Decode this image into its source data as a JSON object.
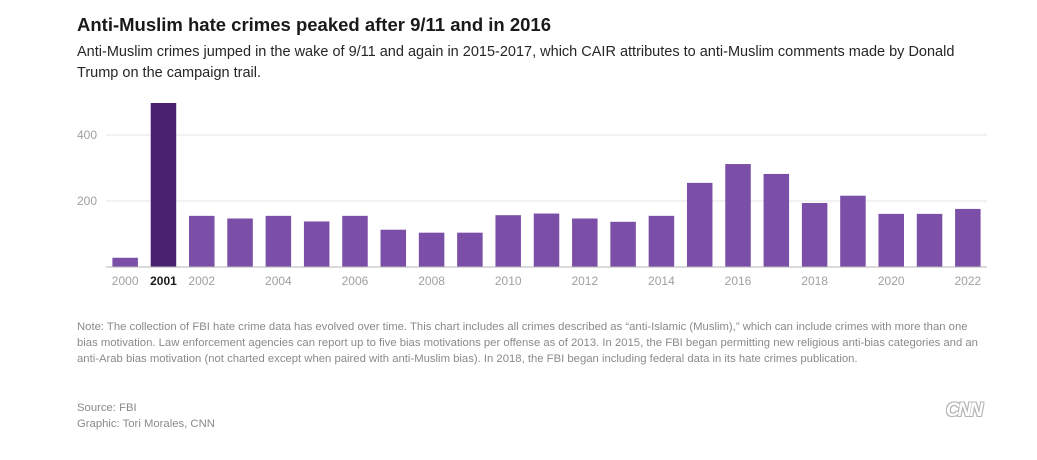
{
  "header": {
    "title": "Anti-Muslim hate crimes peaked after 9/11 and in 2016",
    "subtitle": "Anti-Muslim crimes jumped in the wake of 9/11 and again in 2015-2017, which CAIR attributes to anti-Muslim comments made by Donald Trump on the campaign trail."
  },
  "chart_data": {
    "type": "bar",
    "title": "Anti-Muslim hate crimes peaked after 9/11 and in 2016",
    "xlabel": "",
    "ylabel": "",
    "ylim": [
      0,
      500
    ],
    "yticks": [
      200,
      400
    ],
    "grid": true,
    "categories": [
      "2000",
      "2001",
      "2002",
      "2003",
      "2004",
      "2005",
      "2006",
      "2007",
      "2008",
      "2009",
      "2010",
      "2011",
      "2012",
      "2013",
      "2014",
      "2015",
      "2016",
      "2017",
      "2018",
      "2019",
      "2020",
      "2021",
      "2022"
    ],
    "values": [
      28,
      497,
      155,
      147,
      155,
      138,
      155,
      113,
      104,
      104,
      157,
      162,
      147,
      137,
      155,
      255,
      312,
      282,
      194,
      216,
      161,
      161,
      176
    ],
    "xtick_labels": [
      "2000",
      "2001",
      "2002",
      "2004",
      "2006",
      "2008",
      "2010",
      "2012",
      "2014",
      "2016",
      "2018",
      "2020",
      "2022"
    ],
    "highlight": "2001",
    "colors": {
      "bar": "#7b4fa8",
      "highlight_bar": "#4a2170",
      "grid": "#e4e4e4",
      "axis": "#b5b5b5"
    }
  },
  "footer": {
    "note": "Note: The collection of FBI hate crime data has evolved over time. This chart includes all crimes described as “anti-Islamic (Muslim),” which can include crimes with more than one bias motivation. Law enforcement agencies can report up to five bias motivations per offense as of 2013. In 2015, the FBI began permitting new religious anti-bias categories and an anti-Arab bias motivation (not charted except when paired with anti-Muslim bias). In 2018, the FBI began including federal data in its hate crimes publication.",
    "source": "Source: FBI",
    "credit": "Graphic: Tori Morales, CNN",
    "logo": "CNN"
  }
}
